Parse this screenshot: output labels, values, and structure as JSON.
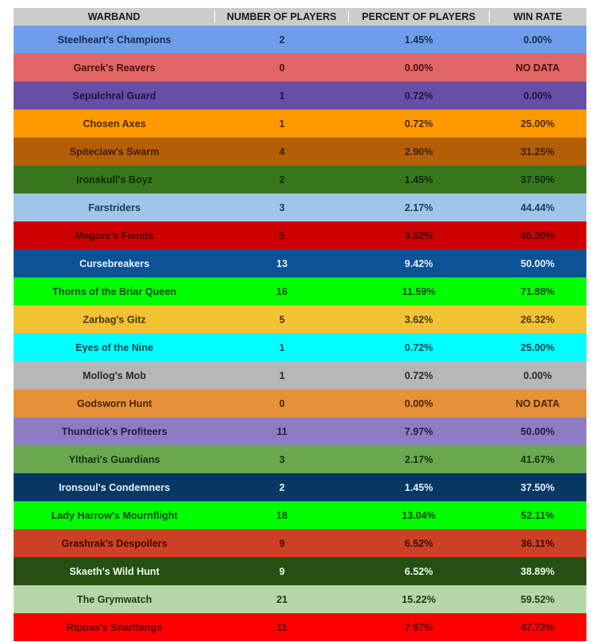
{
  "chart_data": {
    "type": "table",
    "columns": [
      "WARBAND",
      "NUMBER OF PLAYERS",
      "PERCENT OF PLAYERS",
      "WIN RATE"
    ],
    "rows": [
      {
        "warband": "Steelheart's Champions",
        "players": "2",
        "percent": "1.45%",
        "win_rate": "0.00%",
        "color": "#6d9eeb",
        "text_color": "#1c2a4a"
      },
      {
        "warband": "Garrek's Reavers",
        "players": "0",
        "percent": "0.00%",
        "win_rate": "NO DATA",
        "color": "#e06666",
        "text_color": "#4a1010"
      },
      {
        "warband": "Sepulchral Guard",
        "players": "1",
        "percent": "0.72%",
        "win_rate": "0.00%",
        "color": "#674ea7",
        "text_color": "#1d1540"
      },
      {
        "warband": "Chosen Axes",
        "players": "1",
        "percent": "0.72%",
        "win_rate": "25.00%",
        "color": "#ff9900",
        "text_color": "#4a2a00"
      },
      {
        "warband": "Spiteclaw's Swarm",
        "players": "4",
        "percent": "2.90%",
        "win_rate": "31.25%",
        "color": "#b45f06",
        "text_color": "#3d1f00"
      },
      {
        "warband": "Ironskull's Boyz",
        "players": "2",
        "percent": "1.45%",
        "win_rate": "37.50%",
        "color": "#38761d",
        "text_color": "#0f2a06"
      },
      {
        "warband": "Farstriders",
        "players": "3",
        "percent": "2.17%",
        "win_rate": "44.44%",
        "color": "#9fc5e8",
        "text_color": "#1f3a55"
      },
      {
        "warband": "Magore's Fiends",
        "players": "5",
        "percent": "3.62%",
        "win_rate": "45.00%",
        "color": "#cc0000",
        "text_color": "#4a0000"
      },
      {
        "warband": "Cursebreakers",
        "players": "13",
        "percent": "9.42%",
        "win_rate": "50.00%",
        "color": "#0b5394",
        "text_color": "#e8f0ff"
      },
      {
        "warband": "Thorns of the Briar Queen",
        "players": "16",
        "percent": "11.59%",
        "win_rate": "71.88%",
        "color": "#00ff00",
        "text_color": "#0a4a0a"
      },
      {
        "warband": "Zarbag's Gitz",
        "players": "5",
        "percent": "3.62%",
        "win_rate": "26.32%",
        "color": "#f1c232",
        "text_color": "#4a3a00"
      },
      {
        "warband": "Eyes of the Nine",
        "players": "1",
        "percent": "0.72%",
        "win_rate": "25.00%",
        "color": "#00ffff",
        "text_color": "#00474a"
      },
      {
        "warband": "Mollog's Mob",
        "players": "1",
        "percent": "0.72%",
        "win_rate": "0.00%",
        "color": "#b7b7b7",
        "text_color": "#2a2a2a"
      },
      {
        "warband": "Godsworn Hunt",
        "players": "0",
        "percent": "0.00%",
        "win_rate": "NO DATA",
        "color": "#e69138",
        "text_color": "#4a2600"
      },
      {
        "warband": "Thundrick's Profiteers",
        "players": "11",
        "percent": "7.97%",
        "win_rate": "50.00%",
        "color": "#8e7cc3",
        "text_color": "#231a45"
      },
      {
        "warband": "Ylthari's Guardians",
        "players": "3",
        "percent": "2.17%",
        "win_rate": "41.67%",
        "color": "#6aa84f",
        "text_color": "#163010"
      },
      {
        "warband": "Ironsoul's Condemners",
        "players": "2",
        "percent": "1.45%",
        "win_rate": "37.50%",
        "color": "#073763",
        "text_color": "#e8f0ff"
      },
      {
        "warband": "Lady Harrow's Mournflight",
        "players": "18",
        "percent": "13.04%",
        "win_rate": "52.11%",
        "color": "#00ff00",
        "text_color": "#0a4a0a"
      },
      {
        "warband": "Grashrak's Despoilers",
        "players": "9",
        "percent": "6.52%",
        "win_rate": "36.11%",
        "color": "#cc4125",
        "text_color": "#3d0c02"
      },
      {
        "warband": "Skaeth's Wild Hunt",
        "players": "9",
        "percent": "6.52%",
        "win_rate": "38.89%",
        "color": "#274e13",
        "text_color": "#eaffea"
      },
      {
        "warband": "The Grymwatch",
        "players": "21",
        "percent": "15.22%",
        "win_rate": "59.52%",
        "color": "#b6d7a8",
        "text_color": "#1f3a14"
      },
      {
        "warband": "Rippas's Snarlfangs",
        "players": "11",
        "percent": "7.97%",
        "win_rate": "47.73%",
        "color": "#ff0000",
        "text_color": "#5a0000"
      }
    ]
  }
}
